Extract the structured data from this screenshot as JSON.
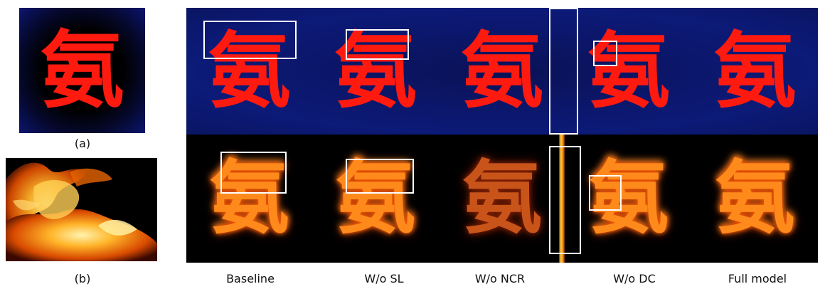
{
  "panel_a": {
    "glyph": "氨",
    "caption": "(a)"
  },
  "panel_b": {
    "caption": "(b)"
  },
  "columns": [
    {
      "label": "Baseline",
      "glyph": "氨"
    },
    {
      "label": "W/o SL",
      "glyph": "氨"
    },
    {
      "label": "W/o NCR",
      "glyph": "氨"
    },
    {
      "label": "W/o DC",
      "glyph": "氨"
    },
    {
      "label": "Full model",
      "glyph": "氨"
    }
  ],
  "colors": {
    "glyph_red": "#ff1a10",
    "blue_background": "#0a1a6a",
    "fire": "#ff8a1c",
    "highlight_box": "#ffffff"
  }
}
